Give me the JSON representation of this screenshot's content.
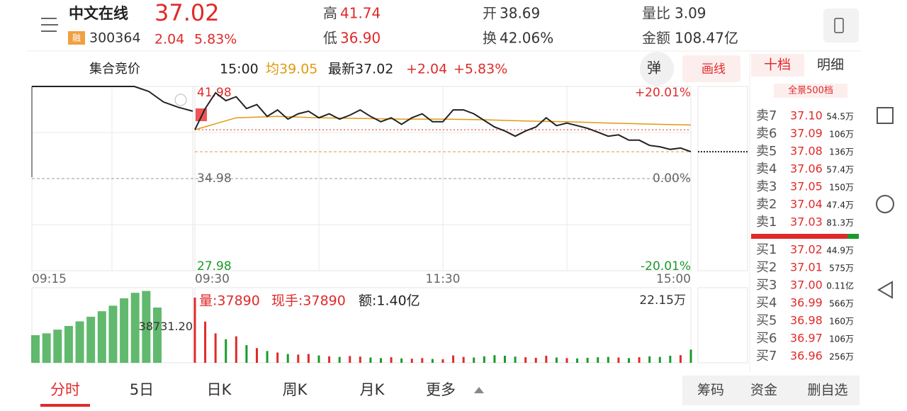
{
  "header": {
    "name": "中文在线",
    "badge": "融",
    "code": "300364",
    "price": "37.02",
    "change": "2.04",
    "change_pct": "5.83%",
    "stats": [
      {
        "label": "高",
        "value": "41.74"
      },
      {
        "label": "低",
        "value": "36.90"
      },
      {
        "label": "开",
        "value": "38.69"
      },
      {
        "label": "换",
        "value": "42.06%"
      },
      {
        "label": "量比",
        "value": "3.09"
      },
      {
        "label": "金额",
        "value": "108.47亿"
      }
    ]
  },
  "toolbar": {
    "mode": "集合竞价",
    "time": "15:00",
    "avg": "均39.05",
    "latest": "最新37.02",
    "change": "+2.04",
    "change_pct": "+5.83%",
    "popup": "弹",
    "draw": "画线"
  },
  "intraday": {
    "ylim": [
      27.98,
      41.98
    ],
    "yticks": [
      41.98,
      34.98,
      27.98
    ],
    "pct_ticks": [
      "+20.01%",
      "0.00%",
      "-20.01%"
    ],
    "time_labels": [
      "09:15",
      "09:30",
      "11:30",
      "15:00"
    ],
    "auction": [
      41.98,
      41.98,
      41.98,
      41.98,
      41.98,
      41.98,
      41.98,
      41.98,
      41.6,
      40.8,
      40.4,
      40.1
    ],
    "price": [
      38.69,
      40.3,
      41.5,
      40.9,
      41.2,
      40.3,
      40.6,
      39.7,
      40.2,
      39.5,
      39.9,
      40.1,
      39.6,
      39.9,
      39.5,
      39.8,
      40.2,
      39.7,
      39.3,
      39.6,
      39.1,
      39.6,
      39.9,
      39.3,
      39.3,
      40.2,
      40.2,
      39.9,
      39.4,
      38.9,
      38.6,
      38.2,
      38.6,
      38.9,
      39.6,
      39.0,
      39.2,
      39.0,
      38.8,
      38.5,
      38.2,
      38.3,
      37.9,
      37.9,
      37.5,
      37.4,
      37.2,
      37.3,
      37.02
    ],
    "avg": [
      38.69,
      39.6,
      39.7,
      39.6,
      39.55,
      39.5,
      39.5,
      39.45,
      39.35,
      39.3,
      39.2,
      39.12,
      39.05
    ],
    "volume_info": {
      "vol": "量:37890",
      "hand": "现手:37890",
      "amount": "额:1.40亿"
    },
    "vlim": [
      0,
      22.15
    ],
    "vol_max_label": "22.15万",
    "volume": [
      22.15,
      14,
      10,
      8,
      9,
      6,
      5,
      4,
      3.5,
      3,
      2.8,
      3,
      2.5,
      2.2,
      2,
      2.3,
      2.1,
      1.8,
      1.6,
      1.9,
      1.5,
      1.4,
      1.6,
      1.3,
      1.2,
      2.5,
      2,
      1.8,
      2.2,
      2.6,
      2.4,
      2.1,
      1.9,
      1.7,
      2.4,
      1.8,
      1.6,
      1.5,
      1.7,
      1.9,
      2,
      1.8,
      1.6,
      1.9,
      2.2,
      2,
      2.4,
      2.6,
      4.5
    ],
    "auction_vlim": [
      0,
      80000
    ],
    "auction_vticks": [
      {
        "value": 38731.2,
        "label": "38731.20"
      }
    ],
    "auction_volume": [
      30000,
      32000,
      36000,
      40000,
      45000,
      50000,
      56000,
      62000,
      70000,
      76000,
      78000,
      60000
    ]
  },
  "order_book": {
    "tabs": [
      "十档",
      "明细"
    ],
    "panorama": "全景500档",
    "asks": [
      {
        "label": "卖7",
        "price": "37.10",
        "vol": "54.5万"
      },
      {
        "label": "卖6",
        "price": "37.09",
        "vol": "106万"
      },
      {
        "label": "卖5",
        "price": "37.08",
        "vol": "136万"
      },
      {
        "label": "卖4",
        "price": "37.06",
        "vol": "57.4万"
      },
      {
        "label": "卖3",
        "price": "37.05",
        "vol": "150万"
      },
      {
        "label": "卖2",
        "price": "37.04",
        "vol": "47.4万"
      },
      {
        "label": "卖1",
        "price": "37.03",
        "vol": "81.3万"
      }
    ],
    "bids": [
      {
        "label": "买1",
        "price": "37.02",
        "vol": "44.9万"
      },
      {
        "label": "买2",
        "price": "37.01",
        "vol": "575万"
      },
      {
        "label": "买3",
        "price": "37.00",
        "vol": "0.11亿"
      },
      {
        "label": "买4",
        "price": "36.99",
        "vol": "566万"
      },
      {
        "label": "买5",
        "price": "36.98",
        "vol": "160万"
      },
      {
        "label": "买6",
        "price": "36.97",
        "vol": "106万"
      },
      {
        "label": "买7",
        "price": "36.96",
        "vol": "256万"
      }
    ]
  },
  "tabs": [
    "分时",
    "5日",
    "日K",
    "周K",
    "月K",
    "更多"
  ],
  "actions": [
    "筹码",
    "资金",
    "删自选"
  ]
}
